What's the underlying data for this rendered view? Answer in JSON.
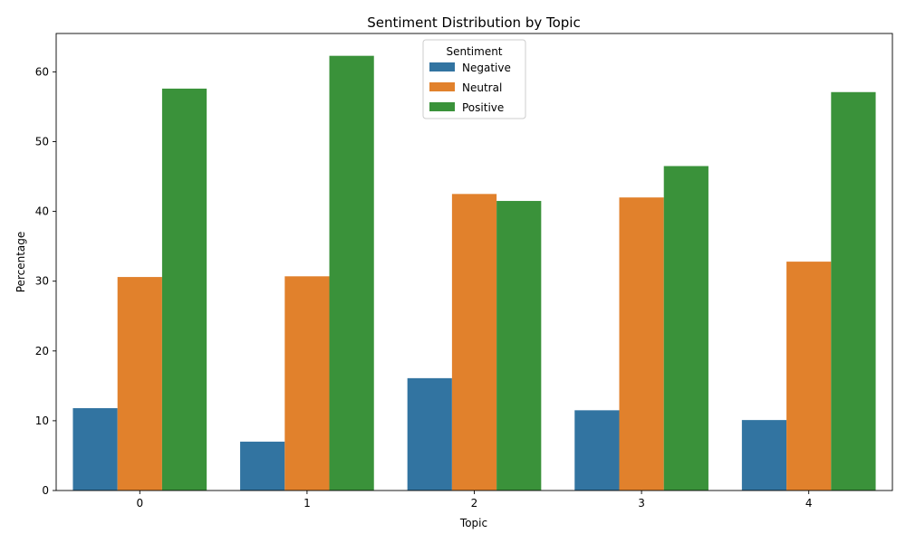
{
  "chart_data": {
    "type": "bar",
    "title": "Sentiment Distribution by Topic",
    "xlabel": "Topic",
    "ylabel": "Percentage",
    "categories": [
      "0",
      "1",
      "2",
      "3",
      "4"
    ],
    "ylim": [
      0,
      65.5
    ],
    "yticks": [
      0,
      10,
      20,
      30,
      40,
      50,
      60
    ],
    "grid": false,
    "legend": {
      "title": "Sentiment",
      "position": "top-center"
    },
    "series": [
      {
        "name": "Negative",
        "color": "#3274a1",
        "values": [
          11.8,
          7.0,
          16.1,
          11.5,
          10.1
        ]
      },
      {
        "name": "Neutral",
        "color": "#e1812c",
        "values": [
          30.6,
          30.7,
          42.5,
          42.0,
          32.8
        ]
      },
      {
        "name": "Positive",
        "color": "#3a923a",
        "values": [
          57.6,
          62.3,
          41.5,
          46.5,
          57.1
        ]
      }
    ]
  }
}
